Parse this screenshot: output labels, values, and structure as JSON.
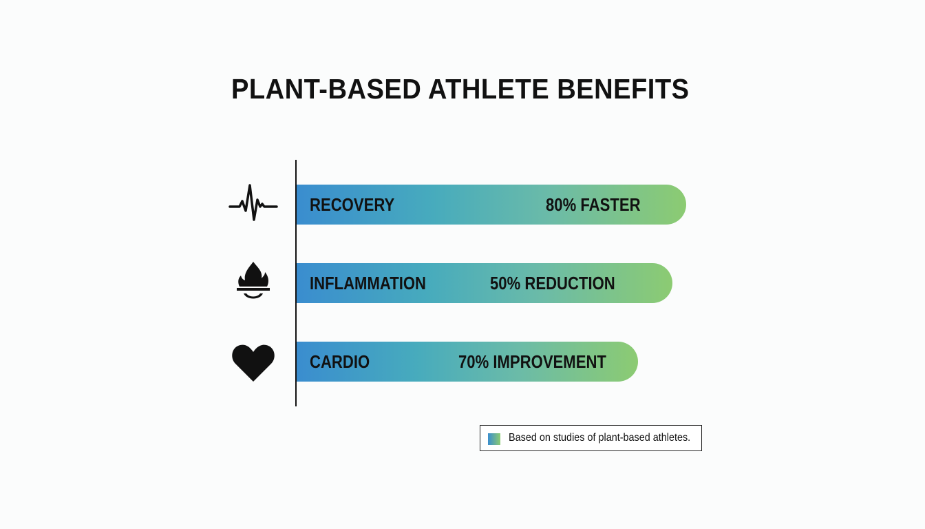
{
  "chart_data": {
    "type": "bar",
    "orientation": "horizontal",
    "title": "PLANT-BASED ATHLETE BENEFITS",
    "categories": [
      "RECOVERY",
      "INFLAMMATION",
      "CARDIO"
    ],
    "values": [
      80,
      50,
      70
    ],
    "value_labels": [
      "80% FASTER",
      "50% REDUCTION",
      "70% IMPROVEMENT"
    ],
    "icons": [
      "heartbeat-icon",
      "flame-icon",
      "heart-icon"
    ],
    "legend": {
      "text": "Based on studies of plant-based athletes.",
      "placement": "bottom-right"
    },
    "colors": {
      "gradient_start": "#3a8dcf",
      "gradient_end": "#8ccb72"
    },
    "grid": false
  }
}
